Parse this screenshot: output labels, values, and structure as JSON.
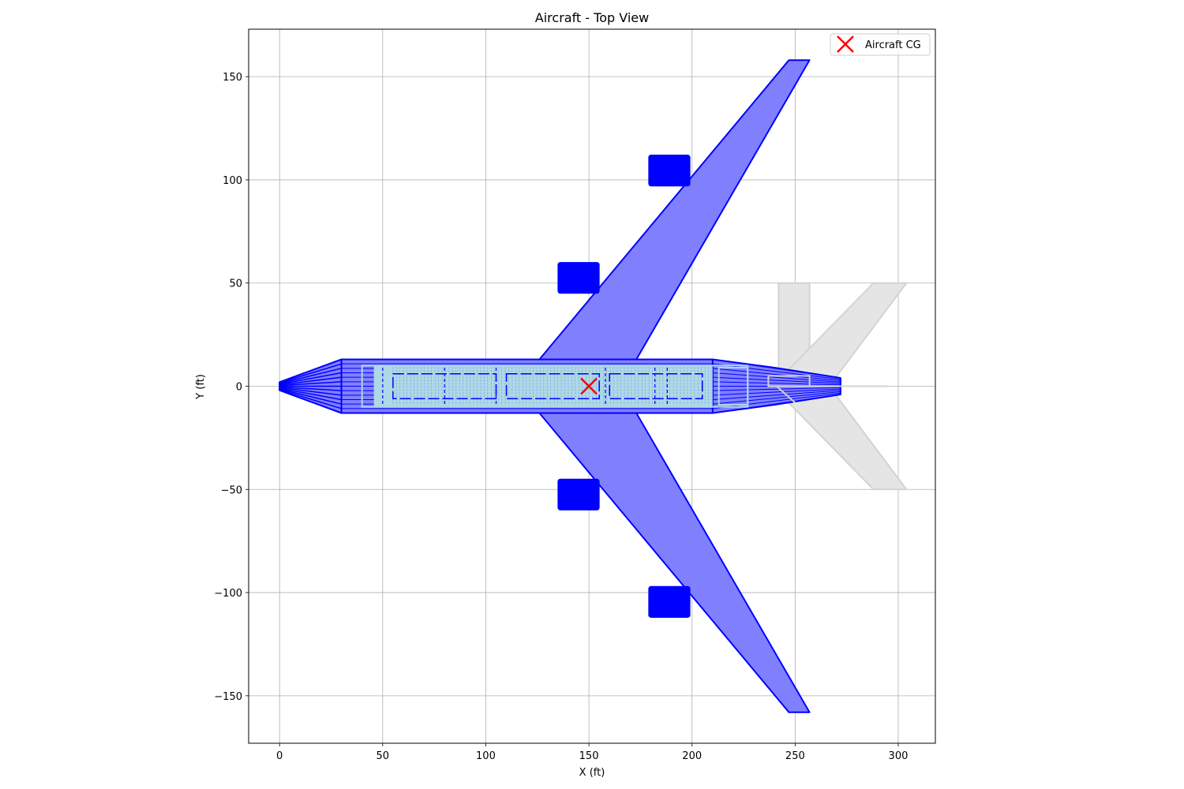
{
  "chart_data": {
    "type": "line",
    "title": "Aircraft - Top View",
    "xlabel": "X (ft)",
    "ylabel": "Y (ft)",
    "xlim": [
      -15,
      318
    ],
    "ylim": [
      -173,
      173
    ],
    "xticks": [
      0,
      50,
      100,
      150,
      200,
      250,
      300
    ],
    "yticks": [
      -150,
      -100,
      -50,
      0,
      50,
      100,
      150
    ],
    "ytick_labels": [
      "−150",
      "−100",
      "−50",
      "0",
      "50",
      "100",
      "150"
    ],
    "grid": true,
    "legend": {
      "position": "upper right",
      "entries": [
        {
          "label": "Aircraft CG",
          "marker": "x",
          "color": "#ff0000"
        }
      ]
    },
    "colors": {
      "primary": "#0000ff",
      "primary_fill": "#8080ff",
      "cabin": "#add8e6",
      "tail": "#d3d3d3",
      "tail_fill": "#e5e5e5",
      "cg": "#ff0000",
      "grid": "#b0b0b0"
    },
    "series": [
      {
        "part": "fuselage_outline",
        "x": [
          0,
          30,
          210,
          240,
          272,
          272,
          240,
          210,
          30,
          0
        ],
        "y": [
          2,
          13,
          13,
          9,
          4,
          -4,
          -9,
          -13,
          -13,
          -2
        ]
      },
      {
        "part": "fuselage_stations",
        "x": [
          0,
          30,
          210,
          272
        ]
      },
      {
        "part": "wing",
        "x": [
          126,
          247,
          257,
          173,
          173,
          257,
          247,
          126
        ],
        "y": [
          13,
          158,
          158,
          13,
          -13,
          -158,
          -158,
          -13
        ]
      },
      {
        "part": "engines",
        "x_range": [
          [
            135,
            155
          ],
          [
            135,
            155
          ],
          [
            179,
            199
          ],
          [
            179,
            199
          ]
        ],
        "y_range": [
          [
            45,
            60
          ],
          [
            -60,
            -45
          ],
          [
            97,
            112
          ],
          [
            -112,
            -97
          ]
        ]
      },
      {
        "part": "cabin",
        "x": [
          40,
          227
        ],
        "y": [
          -10,
          10
        ]
      },
      {
        "part": "horizontal_tail",
        "x": [
          241,
          288,
          304,
          268,
          268,
          304,
          288,
          241
        ],
        "y": [
          2,
          50,
          50,
          2,
          -2,
          -50,
          -50,
          -2
        ]
      },
      {
        "part": "vertical_tail",
        "x": [
          242,
          257
        ],
        "y": [
          0,
          50
        ]
      },
      {
        "part": "tail_centerline",
        "x": [
          240,
          295
        ],
        "y": [
          0,
          0
        ]
      },
      {
        "part": "aircraft_cg",
        "x": [
          150
        ],
        "y": [
          0
        ]
      }
    ]
  }
}
